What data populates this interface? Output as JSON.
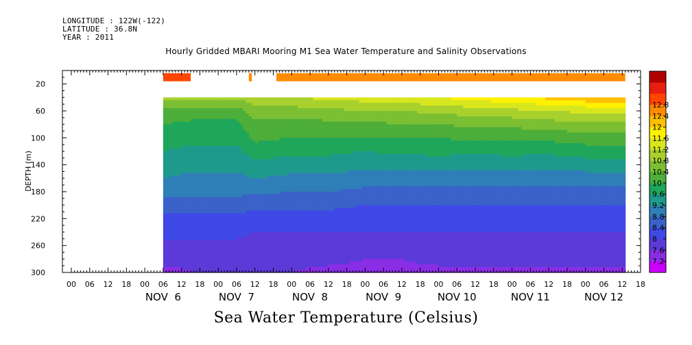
{
  "header": {
    "longitude": "LONGITUDE : 122W(-122)",
    "latitude": "LATITUDE : 36.8N",
    "year": "YEAR : 2011"
  },
  "title": "Hourly Gridded MBARI Mooring M1 Sea Water Temperature and Salinity Observations",
  "variable_label": "Sea Water Temperature (Celsius)",
  "chart_data": {
    "type": "heatmap",
    "title": "Hourly Gridded MBARI Mooring M1 Sea Water Temperature and Salinity Observations",
    "xlabel": "",
    "ylabel": "DEPTH (m)",
    "x_axis": {
      "start": "NOV 5 2011 00:00",
      "end": "NOV 12 2011 18:00",
      "hour_ticks": [
        "00",
        "06",
        "12",
        "18",
        "00",
        "06",
        "12",
        "18",
        "00",
        "06",
        "12",
        "18",
        "00",
        "06",
        "12",
        "18",
        "00",
        "06",
        "12",
        "18",
        "00",
        "06",
        "12",
        "18",
        "00",
        "06",
        "12",
        "18",
        "00",
        "06",
        "12",
        "18"
      ],
      "day_labels": [
        "NOV  6",
        "NOV  7",
        "NOV  8",
        "NOV  9",
        "NOV 10",
        "NOV 11",
        "NOV 12"
      ],
      "day_label_hours": [
        30,
        54,
        78,
        102,
        126,
        150,
        174
      ]
    },
    "y_axis": {
      "ylim": [
        300,
        0
      ],
      "ticks": [
        20,
        60,
        100,
        140,
        180,
        220,
        260,
        300
      ],
      "inverted": true
    },
    "colorbar": {
      "levels": [
        7.2,
        7.6,
        8,
        8.4,
        8.8,
        9.2,
        9.6,
        10,
        10.4,
        10.8,
        11.2,
        11.6,
        12,
        12.4,
        12.8
      ],
      "labels": [
        "12.8",
        "12.4",
        "12",
        "11.6",
        "11.2",
        "10.8",
        "10.4",
        "10",
        "9.6",
        "9.2",
        "8.8",
        "8.4",
        "8",
        "7.6",
        "7.2"
      ],
      "colors": [
        "#cc00ff",
        "#8a2ee6",
        "#5b3ad8",
        "#3f49e6",
        "#3a62c8",
        "#2f7fb8",
        "#1e9a8c",
        "#1fa65a",
        "#4dae3a",
        "#7cbf33",
        "#a8d12e",
        "#d8e61e",
        "#fff000",
        "#ffc000",
        "#ff8c00",
        "#ff4500",
        "#e81e10",
        "#b00000"
      ]
    },
    "data_start_hour": 30,
    "surface_sensor": {
      "depth_m": 10,
      "segments": [
        {
          "from_hour": 30,
          "to_hour": 39,
          "value": 12.9
        },
        {
          "from_hour": 58,
          "to_hour": 59,
          "value": 12.6
        },
        {
          "from_hour": 67,
          "to_hour": 181,
          "value": 12.4
        }
      ]
    },
    "profile_depths_m": [
      40,
      60,
      80,
      100,
      120,
      140,
      160,
      180,
      200,
      220,
      240,
      260,
      280,
      300
    ],
    "columns": [
      {
        "hour": 30,
        "values": [
          11.0,
          10.3,
          10.0,
          9.8,
          9.6,
          9.4,
          9.2,
          8.9,
          8.6,
          8.3,
          8.1,
          7.9,
          7.7,
          7.5
        ]
      },
      {
        "hour": 40,
        "values": [
          11.0,
          10.2,
          9.9,
          9.7,
          9.5,
          9.3,
          9.1,
          8.9,
          8.6,
          8.3,
          8.1,
          7.9,
          7.7,
          7.6
        ]
      },
      {
        "hour": 54,
        "values": [
          10.9,
          10.2,
          9.9,
          9.7,
          9.5,
          9.3,
          9.1,
          8.9,
          8.6,
          8.3,
          8.1,
          7.9,
          7.7,
          7.6
        ]
      },
      {
        "hour": 60,
        "values": [
          11.1,
          10.6,
          10.3,
          10.1,
          9.8,
          9.5,
          9.2,
          8.9,
          8.5,
          8.2,
          8.0,
          7.9,
          7.7,
          7.6
        ]
      },
      {
        "hour": 72,
        "values": [
          11.2,
          10.6,
          10.2,
          10.0,
          9.7,
          9.4,
          9.1,
          8.8,
          8.5,
          8.2,
          8.0,
          7.8,
          7.7,
          7.6
        ]
      },
      {
        "hour": 84,
        "values": [
          11.3,
          10.7,
          10.3,
          10.0,
          9.7,
          9.4,
          9.1,
          8.8,
          8.5,
          8.2,
          8.0,
          7.8,
          7.7,
          7.5
        ]
      },
      {
        "hour": 96,
        "values": [
          11.4,
          10.8,
          10.3,
          10.0,
          9.6,
          9.3,
          9.0,
          8.7,
          8.4,
          8.2,
          8.0,
          7.8,
          7.6,
          7.5
        ]
      },
      {
        "hour": 108,
        "values": [
          11.5,
          10.8,
          10.4,
          10.0,
          9.7,
          9.3,
          9.0,
          8.7,
          8.4,
          8.2,
          8.0,
          7.8,
          7.6,
          7.5
        ]
      },
      {
        "hour": 120,
        "values": [
          11.6,
          10.9,
          10.4,
          10.0,
          9.7,
          9.4,
          9.0,
          8.7,
          8.4,
          8.2,
          8.0,
          7.8,
          7.7,
          7.5
        ]
      },
      {
        "hour": 132,
        "values": [
          11.8,
          11.0,
          10.5,
          10.1,
          9.7,
          9.3,
          9.0,
          8.7,
          8.4,
          8.2,
          8.0,
          7.8,
          7.7,
          7.5
        ]
      },
      {
        "hour": 144,
        "values": [
          11.9,
          11.1,
          10.5,
          10.1,
          9.7,
          9.4,
          9.0,
          8.7,
          8.4,
          8.2,
          8.0,
          7.8,
          7.7,
          7.5
        ]
      },
      {
        "hour": 156,
        "values": [
          12.1,
          11.2,
          10.6,
          10.1,
          9.7,
          9.3,
          9.0,
          8.7,
          8.4,
          8.2,
          8.0,
          7.8,
          7.7,
          7.5
        ]
      },
      {
        "hour": 168,
        "values": [
          12.3,
          11.3,
          10.7,
          10.2,
          9.8,
          9.4,
          9.0,
          8.7,
          8.4,
          8.2,
          8.0,
          7.8,
          7.7,
          7.5
        ]
      },
      {
        "hour": 181,
        "values": [
          12.4,
          11.4,
          10.7,
          10.2,
          9.8,
          9.4,
          9.0,
          8.7,
          8.4,
          8.2,
          8.0,
          7.8,
          7.7,
          7.5
        ]
      }
    ]
  }
}
